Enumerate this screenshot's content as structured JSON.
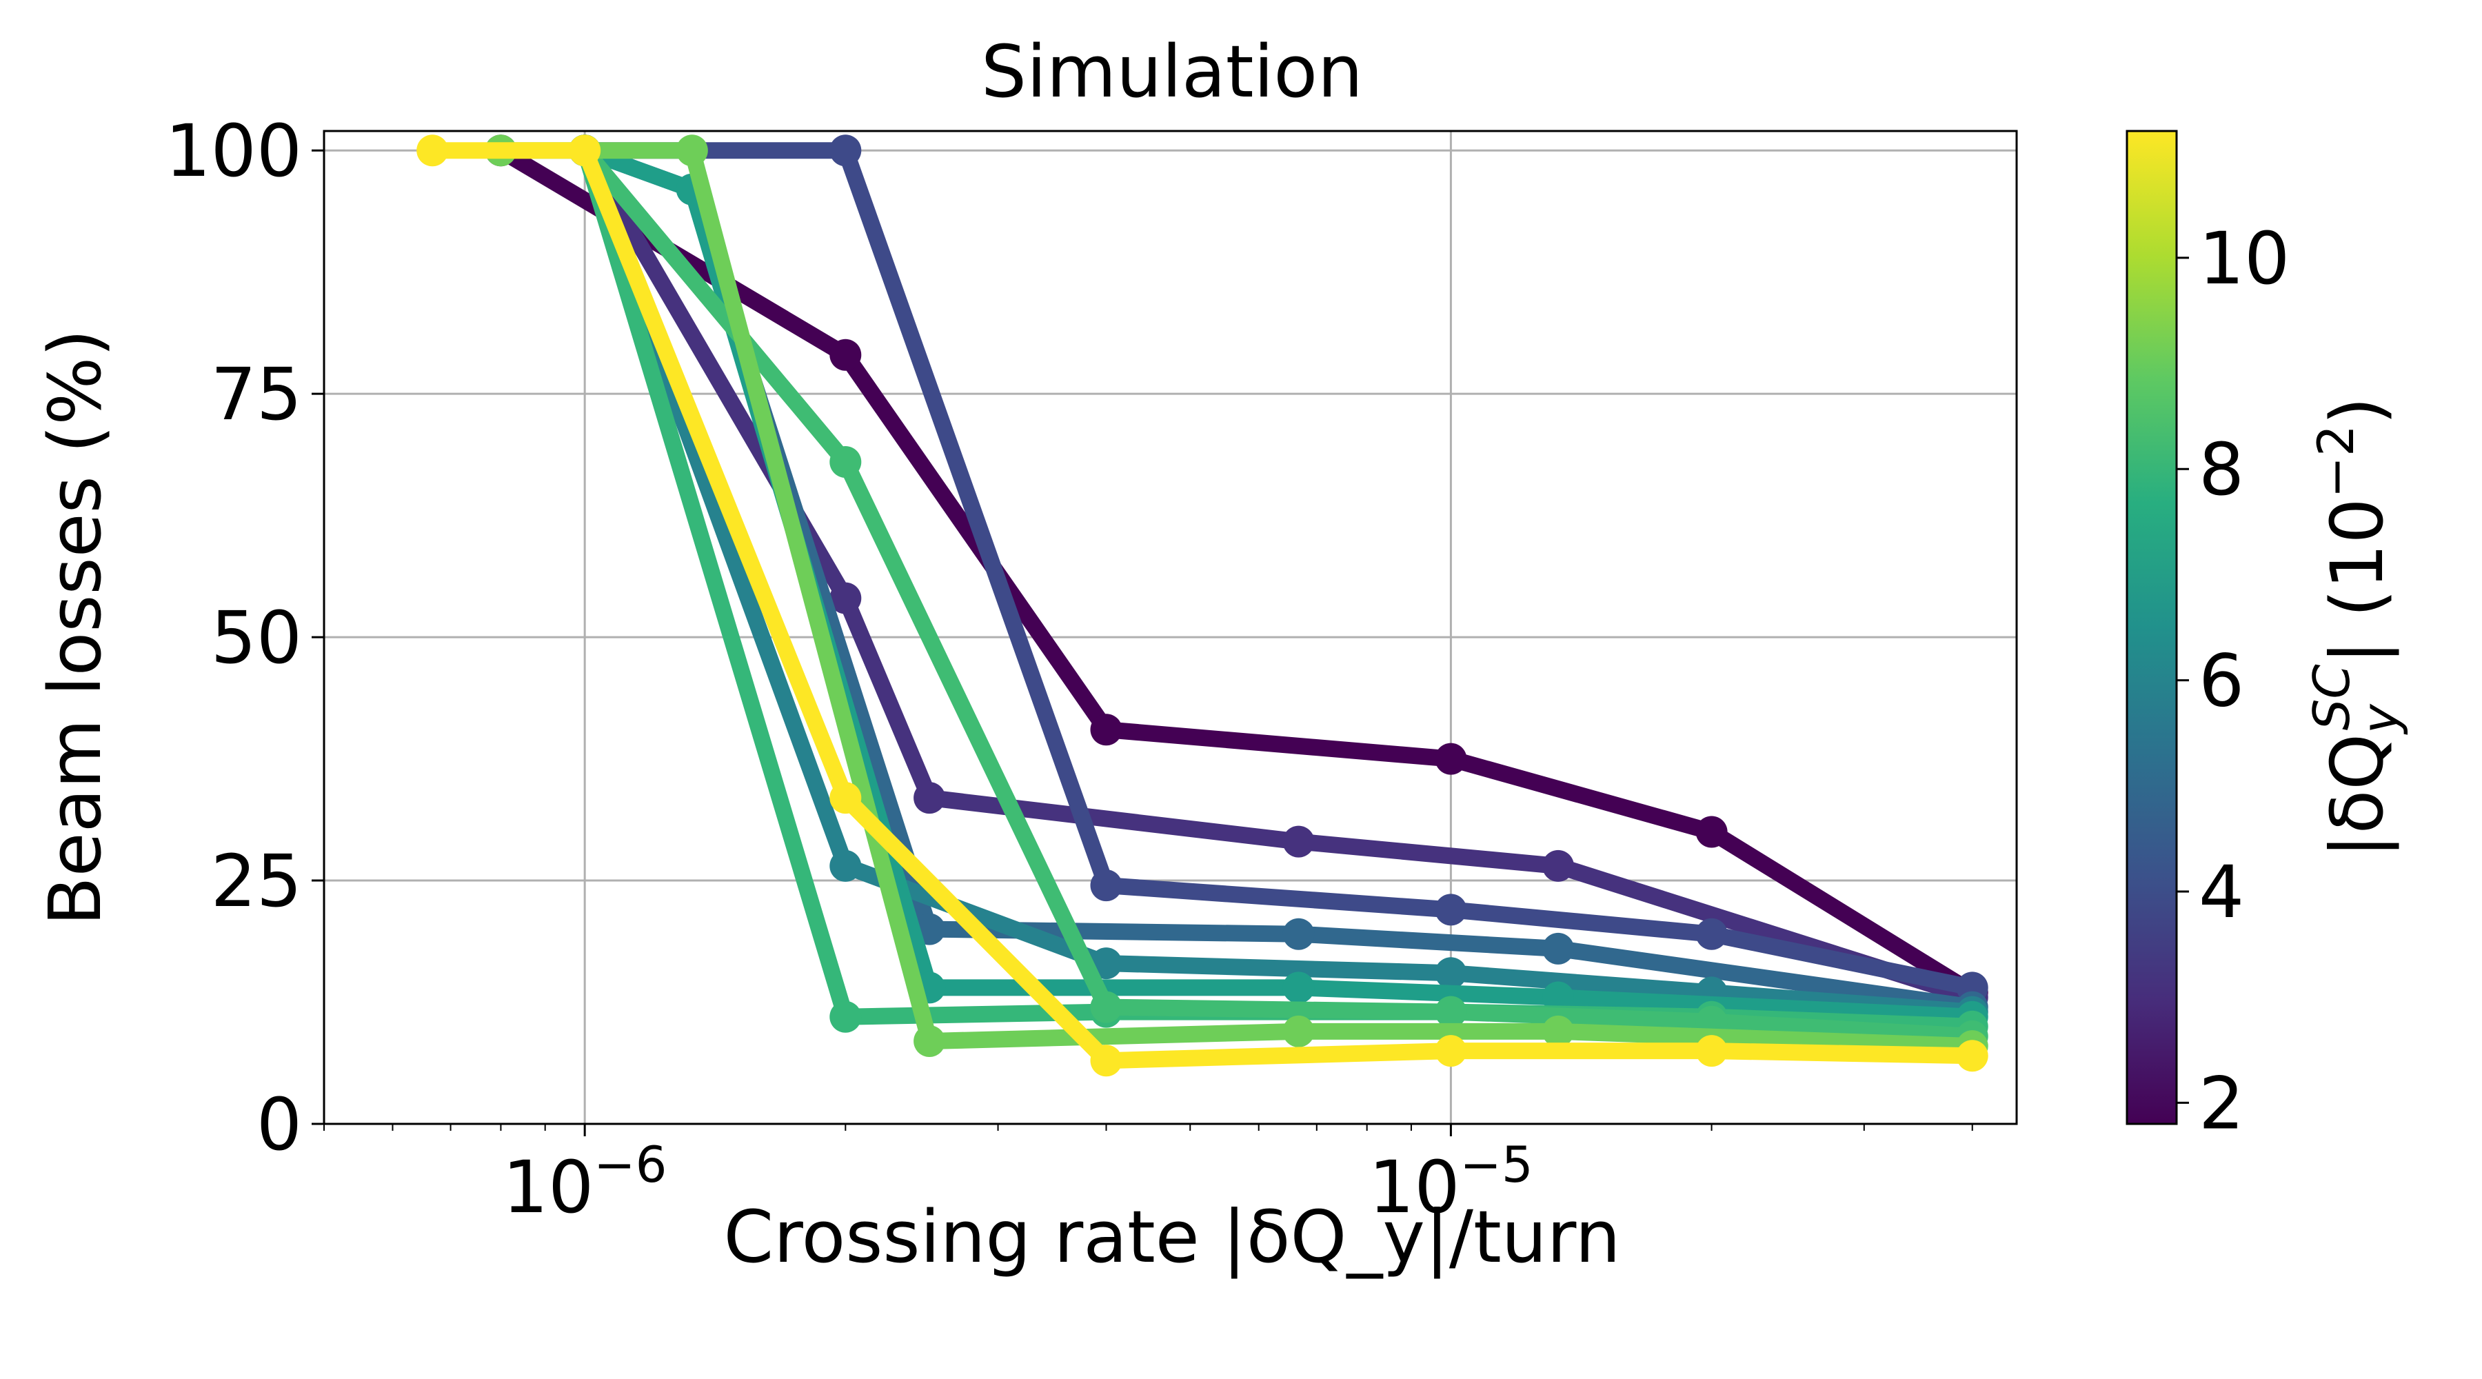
{
  "chart_data": {
    "type": "line",
    "title": "Simulation",
    "xlabel": "Crossing rate |δQ_y|/turn",
    "ylabel": "Beam losses (%)",
    "xscale": "log",
    "xlim": [
      5e-07,
      4.5e-05
    ],
    "ylim": [
      0,
      102
    ],
    "grid": true,
    "x_ticks": [
      {
        "value": 1e-06,
        "base": "10",
        "exp": "−6"
      },
      {
        "value": 1e-05,
        "base": "10",
        "exp": "−5"
      }
    ],
    "y_ticks": [
      {
        "value": 0,
        "label": "0"
      },
      {
        "value": 25,
        "label": "25"
      },
      {
        "value": 50,
        "label": "50"
      },
      {
        "value": 75,
        "label": "75"
      },
      {
        "value": 100,
        "label": "100"
      }
    ],
    "colorbar": {
      "label_main": "|δQ",
      "label_sub": "y",
      "label_sup": "SC",
      "label_tail": "| (10",
      "label_exp": "−2",
      "label_close": ")",
      "range": [
        1.8,
        11.2
      ],
      "colormap": "viridis",
      "ticks": [
        {
          "value": 2,
          "label": "2"
        },
        {
          "value": 4,
          "label": "4"
        },
        {
          "value": 6,
          "label": "6"
        },
        {
          "value": 8,
          "label": "8"
        },
        {
          "value": 10,
          "label": "10"
        }
      ]
    },
    "series": [
      {
        "name": "dQsc=2",
        "color": "#440154",
        "x": [
          8e-07,
          2e-06,
          4e-06,
          1e-05,
          2e-05,
          4e-05
        ],
        "y": [
          100,
          79,
          40.5,
          37.5,
          30,
          13.5
        ]
      },
      {
        "name": "dQsc=2.8",
        "color": "#46327e",
        "x": [
          1e-06,
          2e-06,
          2.5e-06,
          6.67e-06,
          1.33e-05,
          4e-05
        ],
        "y": [
          100,
          54,
          33.5,
          29,
          26.5,
          13
        ]
      },
      {
        "name": "dQsc=3.7",
        "color": "#3e4a89",
        "x": [
          1e-06,
          2e-06,
          4e-06,
          1e-05,
          2e-05,
          4e-05
        ],
        "y": [
          100,
          100,
          24.5,
          22,
          19.5,
          14
        ]
      },
      {
        "name": "dQsc=4.6",
        "color": "#31688e",
        "x": [
          1e-06,
          1.33e-06,
          2.5e-06,
          6.67e-06,
          1.33e-05,
          4e-05
        ],
        "y": [
          100,
          96,
          20,
          19.5,
          18,
          12
        ]
      },
      {
        "name": "dQsc=5.5",
        "color": "#26828e",
        "x": [
          1e-06,
          2e-06,
          4e-06,
          1e-05,
          2e-05,
          4e-05
        ],
        "y": [
          100,
          26.5,
          16.5,
          15.5,
          13.5,
          11.5
        ]
      },
      {
        "name": "dQsc=6.4",
        "color": "#1f9e89",
        "x": [
          1e-06,
          1.33e-06,
          2.5e-06,
          6.67e-06,
          1.33e-05,
          4e-05
        ],
        "y": [
          100,
          96,
          14,
          14,
          13,
          11
        ]
      },
      {
        "name": "dQsc=7.3",
        "color": "#35b779",
        "x": [
          1e-06,
          2e-06,
          4e-06,
          1e-05,
          2e-05,
          4e-05
        ],
        "y": [
          100,
          11,
          11.5,
          11.5,
          11,
          10
        ]
      },
      {
        "name": "dQsc=8.2",
        "color": "#3fbc73",
        "x": [
          1e-06,
          2e-06,
          4e-06,
          1e-05,
          2e-05,
          4e-05
        ],
        "y": [
          100,
          68,
          12,
          11.5,
          10.5,
          9
        ]
      },
      {
        "name": "dQsc=9.1",
        "color": "#6ece58",
        "x": [
          8e-07,
          1.33e-06,
          2.5e-06,
          6.67e-06,
          1.33e-05,
          4e-05
        ],
        "y": [
          100,
          100,
          8.5,
          9.5,
          9.5,
          8
        ]
      },
      {
        "name": "dQsc=11",
        "color": "#fde725",
        "x": [
          6.67e-07,
          1e-06,
          2e-06,
          4e-06,
          1e-05,
          2e-05,
          4e-05
        ],
        "y": [
          100,
          100,
          33.5,
          6.5,
          7.5,
          7.5,
          7
        ]
      }
    ]
  }
}
